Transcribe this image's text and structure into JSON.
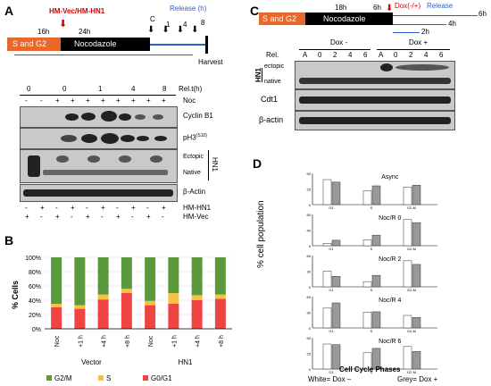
{
  "panelA": {
    "letter": "A",
    "phase1": "S and G2",
    "phase2": "Nocodazole",
    "treatment": "HM-Vec/HM-HN1",
    "t16": "16h",
    "t24": "24h",
    "release": "Release (h)",
    "timepoints": [
      "C",
      "1",
      "4",
      "8"
    ],
    "harvest": "Harvest",
    "relt_values": [
      "0",
      "0",
      "1",
      "4",
      "8"
    ],
    "relt_label": "Rel.t(h)",
    "noc_label": "Noc",
    "noc_signs": [
      "-",
      "-",
      "+",
      "+",
      "+",
      "+",
      "+",
      "+",
      "+",
      "+"
    ],
    "blot_labels": [
      "Cyclin B1",
      "pH3",
      "Ectopic",
      "Native",
      "β-Actin"
    ],
    "ph3_sup": "(S10)",
    "hn1_side": "HN1",
    "hm_hn1_label": "HM-HN1",
    "hm_vec_label": "HM-Vec",
    "hm_hn1_signs": [
      "-",
      "+",
      "-",
      "+",
      "-",
      "+",
      "-",
      "+",
      "-",
      "+"
    ],
    "hm_vec_signs": [
      "+",
      "-",
      "+",
      "-",
      "+",
      "-",
      "+",
      "-",
      "+",
      "-"
    ]
  },
  "panelB": {
    "letter": "B",
    "ylabel": "% Cells",
    "yticks": [
      "0%",
      "20%",
      "40%",
      "60%",
      "80%",
      "100%"
    ],
    "groups": [
      "Vector",
      "HN1"
    ],
    "legend": [
      "G2/M",
      "S",
      "G0/G1"
    ],
    "colors": {
      "g2m": "#5a9a3c",
      "s": "#f5c242",
      "g0g1": "#ee4444"
    }
  },
  "chart_data": [
    {
      "type": "bar",
      "stacked": true,
      "categories": [
        "Noc",
        "+1 h",
        "+4 h",
        "+8 h",
        "Noc",
        "+1 h",
        "+4 h",
        "+8 h"
      ],
      "groups": [
        "Vector",
        "HN1"
      ],
      "ylabel": "% Cells",
      "ylim": [
        0,
        100
      ],
      "series": [
        {
          "name": "G0/G1",
          "values": [
            30,
            28,
            41,
            50,
            33,
            35,
            40,
            42
          ]
        },
        {
          "name": "S",
          "values": [
            5,
            5,
            7,
            6,
            6,
            15,
            7,
            6
          ]
        },
        {
          "name": "G2/M",
          "values": [
            65,
            67,
            52,
            44,
            61,
            50,
            53,
            52
          ]
        }
      ],
      "legend_position": "bottom"
    },
    {
      "type": "bar",
      "ylabel": "% cell population",
      "xlabel": "Cell Cycle Phases",
      "subplots": [
        {
          "title": "Async",
          "categories": [
            "G1",
            "S",
            "G2-M"
          ],
          "series": [
            {
              "values": [
                40,
                22,
                28
              ]
            },
            {
              "values": [
                36,
                30,
                31
              ]
            }
          ],
          "ylim": [
            0,
            50
          ]
        },
        {
          "title": "Noc/R 0",
          "categories": [
            "G1",
            "S",
            "G2-M"
          ],
          "series": [
            {
              "values": [
                6,
                15,
                67
              ]
            },
            {
              "values": [
                14,
                27,
                59
              ]
            }
          ],
          "ylim": [
            0,
            80
          ]
        },
        {
          "title": "Noc/R 2",
          "categories": [
            "G1",
            "S",
            "G2-M"
          ],
          "series": [
            {
              "values": [
                30,
                10,
                50
              ]
            },
            {
              "values": [
                20,
                22,
                43
              ]
            }
          ],
          "ylim": [
            0,
            60
          ]
        },
        {
          "title": "Noc/R 4",
          "categories": [
            "G1",
            "S",
            "G2-M"
          ],
          "series": [
            {
              "values": [
                38,
                30,
                24
              ]
            },
            {
              "values": [
                48,
                31,
                20
              ]
            }
          ],
          "ylim": [
            0,
            60
          ]
        },
        {
          "title": "Noc/R 6",
          "categories": [
            "G1",
            "S",
            "G2-M"
          ],
          "series": [
            {
              "values": [
                40,
                26,
                36
              ]
            },
            {
              "values": [
                39,
                33,
                28
              ]
            }
          ],
          "ylim": [
            0,
            50
          ]
        }
      ],
      "legend_text": "White= Dox −        Grey= Dox +"
    }
  ],
  "panelC": {
    "letter": "C",
    "phase1": "S and G2",
    "phase2": "Nocodazole",
    "t18": "18h",
    "t6h": "6h",
    "dox": "Dox(-/+)",
    "release": "Release",
    "rel_6h": "6h",
    "rel_4h": "4h",
    "rel_2h": "2h",
    "dox_minus": "Dox -",
    "dox_plus": "Dox +",
    "rel_label": "Rel.",
    "lanes": [
      "A",
      "0",
      "2",
      "4",
      "6",
      "A",
      "0",
      "2",
      "4",
      "6"
    ],
    "hn1": "HN1",
    "ectopic": "ectopic",
    "native": "native",
    "cdt1": "Cdt1",
    "actin": "β-actin"
  },
  "panelD": {
    "letter": "D",
    "ylabel": "% cell population",
    "xlabel": "Cell Cycle Phases",
    "legend_white": "White= Dox –",
    "legend_grey": "Grey= Dox +"
  }
}
